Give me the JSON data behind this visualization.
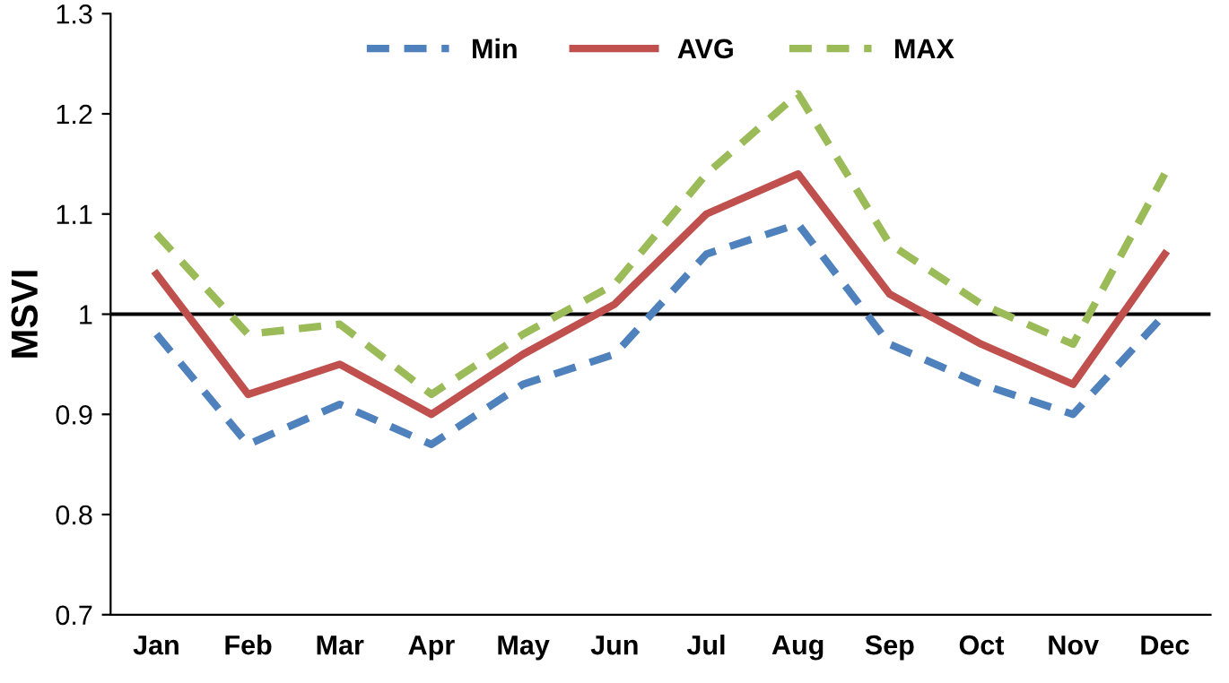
{
  "chart_data": {
    "type": "line",
    "ylabel": "MSVI",
    "categories": [
      "Jan",
      "Feb",
      "Mar",
      "Apr",
      "May",
      "Jun",
      "Jul",
      "Aug",
      "Sep",
      "Oct",
      "Nov",
      "Dec"
    ],
    "series": [
      {
        "name": "Min",
        "color": "#4f81bd",
        "line_style": "dashed",
        "values": [
          0.98,
          0.87,
          0.91,
          0.87,
          0.93,
          0.96,
          1.06,
          1.09,
          0.97,
          0.93,
          0.9,
          1.0
        ]
      },
      {
        "name": "AVG",
        "color": "#c0504d",
        "line_style": "solid",
        "values": [
          1.04,
          0.92,
          0.95,
          0.9,
          0.96,
          1.01,
          1.1,
          1.14,
          1.02,
          0.97,
          0.93,
          1.06
        ]
      },
      {
        "name": "MAX",
        "color": "#9bbb59",
        "line_style": "dashed",
        "values": [
          1.08,
          0.98,
          0.99,
          0.92,
          0.98,
          1.03,
          1.14,
          1.22,
          1.07,
          1.01,
          0.97,
          1.14
        ]
      }
    ],
    "ylim": [
      0.7,
      1.3
    ],
    "yticks": [
      0.7,
      0.8,
      0.9,
      1,
      1.1,
      1.2,
      1.3
    ],
    "ref_lines": [
      {
        "axis": "y",
        "value": 1,
        "color": "#000000"
      }
    ],
    "grid": false,
    "legend": "top",
    "marker": "none"
  }
}
